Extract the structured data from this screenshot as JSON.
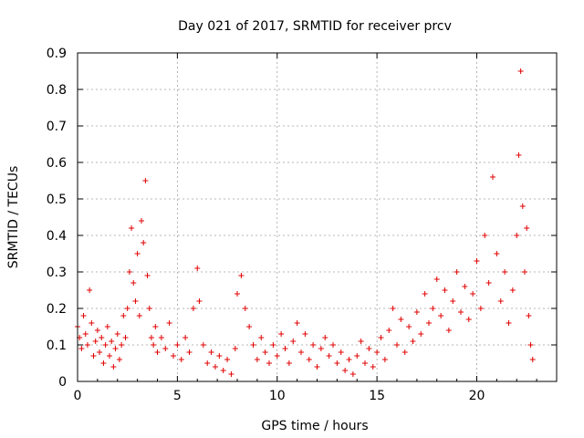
{
  "chart_data": {
    "type": "scatter",
    "title": "Day 021 of 2017, SRMTID for receiver prcv",
    "xlabel": "GPS time / hours",
    "ylabel": "SRMTID / TECUs",
    "xlim": [
      0,
      24
    ],
    "ylim": [
      0,
      0.9
    ],
    "xticks": [
      0,
      5,
      10,
      15,
      20
    ],
    "yticks": [
      0,
      0.1,
      0.2,
      0.3,
      0.4,
      0.5,
      0.6,
      0.7,
      0.8,
      0.9
    ],
    "xtick_labels": [
      "0",
      "5",
      "10",
      "15",
      "20"
    ],
    "ytick_labels": [
      "0",
      "0.1",
      "0.2",
      "0.3",
      "0.4",
      "0.5",
      "0.6",
      "0.7",
      "0.8",
      "0.9"
    ],
    "grid": true,
    "marker": "+",
    "color": "#e00000",
    "series": [
      {
        "name": "SRMTID",
        "points": [
          [
            0.0,
            0.15
          ],
          [
            0.1,
            0.12
          ],
          [
            0.2,
            0.09
          ],
          [
            0.3,
            0.18
          ],
          [
            0.4,
            0.13
          ],
          [
            0.5,
            0.1
          ],
          [
            0.6,
            0.25
          ],
          [
            0.7,
            0.16
          ],
          [
            0.8,
            0.07
          ],
          [
            0.9,
            0.11
          ],
          [
            1.0,
            0.14
          ],
          [
            1.1,
            0.08
          ],
          [
            1.2,
            0.12
          ],
          [
            1.3,
            0.05
          ],
          [
            1.4,
            0.1
          ],
          [
            1.5,
            0.15
          ],
          [
            1.6,
            0.07
          ],
          [
            1.7,
            0.11
          ],
          [
            1.8,
            0.04
          ],
          [
            1.9,
            0.09
          ],
          [
            2.0,
            0.13
          ],
          [
            2.1,
            0.06
          ],
          [
            2.2,
            0.1
          ],
          [
            2.3,
            0.18
          ],
          [
            2.4,
            0.12
          ],
          [
            2.5,
            0.2
          ],
          [
            2.6,
            0.3
          ],
          [
            2.7,
            0.42
          ],
          [
            2.8,
            0.27
          ],
          [
            2.9,
            0.22
          ],
          [
            3.0,
            0.35
          ],
          [
            3.1,
            0.18
          ],
          [
            3.2,
            0.44
          ],
          [
            3.3,
            0.38
          ],
          [
            3.4,
            0.55
          ],
          [
            3.5,
            0.29
          ],
          [
            3.6,
            0.2
          ],
          [
            3.7,
            0.12
          ],
          [
            3.8,
            0.1
          ],
          [
            3.9,
            0.15
          ],
          [
            4.0,
            0.08
          ],
          [
            4.2,
            0.12
          ],
          [
            4.4,
            0.09
          ],
          [
            4.6,
            0.16
          ],
          [
            4.8,
            0.07
          ],
          [
            5.0,
            0.1
          ],
          [
            5.2,
            0.06
          ],
          [
            5.4,
            0.12
          ],
          [
            5.6,
            0.08
          ],
          [
            5.8,
            0.2
          ],
          [
            6.0,
            0.31
          ],
          [
            6.1,
            0.22
          ],
          [
            6.3,
            0.1
          ],
          [
            6.5,
            0.05
          ],
          [
            6.7,
            0.08
          ],
          [
            6.9,
            0.04
          ],
          [
            7.1,
            0.07
          ],
          [
            7.3,
            0.03
          ],
          [
            7.5,
            0.06
          ],
          [
            7.7,
            0.02
          ],
          [
            7.9,
            0.09
          ],
          [
            8.0,
            0.24
          ],
          [
            8.2,
            0.29
          ],
          [
            8.4,
            0.2
          ],
          [
            8.6,
            0.15
          ],
          [
            8.8,
            0.1
          ],
          [
            9.0,
            0.06
          ],
          [
            9.2,
            0.12
          ],
          [
            9.4,
            0.08
          ],
          [
            9.6,
            0.05
          ],
          [
            9.8,
            0.1
          ],
          [
            10.0,
            0.07
          ],
          [
            10.2,
            0.13
          ],
          [
            10.4,
            0.09
          ],
          [
            10.6,
            0.05
          ],
          [
            10.8,
            0.11
          ],
          [
            11.0,
            0.16
          ],
          [
            11.2,
            0.08
          ],
          [
            11.4,
            0.13
          ],
          [
            11.6,
            0.06
          ],
          [
            11.8,
            0.1
          ],
          [
            12.0,
            0.04
          ],
          [
            12.2,
            0.09
          ],
          [
            12.4,
            0.12
          ],
          [
            12.6,
            0.07
          ],
          [
            12.8,
            0.1
          ],
          [
            13.0,
            0.05
          ],
          [
            13.2,
            0.08
          ],
          [
            13.4,
            0.03
          ],
          [
            13.6,
            0.06
          ],
          [
            13.8,
            0.02
          ],
          [
            14.0,
            0.07
          ],
          [
            14.2,
            0.11
          ],
          [
            14.4,
            0.05
          ],
          [
            14.6,
            0.09
          ],
          [
            14.8,
            0.04
          ],
          [
            15.0,
            0.08
          ],
          [
            15.2,
            0.12
          ],
          [
            15.4,
            0.06
          ],
          [
            15.6,
            0.14
          ],
          [
            15.8,
            0.2
          ],
          [
            16.0,
            0.1
          ],
          [
            16.2,
            0.17
          ],
          [
            16.4,
            0.08
          ],
          [
            16.6,
            0.15
          ],
          [
            16.8,
            0.11
          ],
          [
            17.0,
            0.19
          ],
          [
            17.2,
            0.13
          ],
          [
            17.4,
            0.24
          ],
          [
            17.6,
            0.16
          ],
          [
            17.8,
            0.2
          ],
          [
            18.0,
            0.28
          ],
          [
            18.2,
            0.18
          ],
          [
            18.4,
            0.25
          ],
          [
            18.6,
            0.14
          ],
          [
            18.8,
            0.22
          ],
          [
            19.0,
            0.3
          ],
          [
            19.2,
            0.19
          ],
          [
            19.4,
            0.26
          ],
          [
            19.6,
            0.17
          ],
          [
            19.8,
            0.24
          ],
          [
            20.0,
            0.33
          ],
          [
            20.2,
            0.2
          ],
          [
            20.4,
            0.4
          ],
          [
            20.6,
            0.27
          ],
          [
            20.8,
            0.56
          ],
          [
            21.0,
            0.35
          ],
          [
            21.2,
            0.22
          ],
          [
            21.4,
            0.3
          ],
          [
            21.6,
            0.16
          ],
          [
            21.8,
            0.25
          ],
          [
            22.0,
            0.4
          ],
          [
            22.1,
            0.62
          ],
          [
            22.2,
            0.85
          ],
          [
            22.3,
            0.48
          ],
          [
            22.4,
            0.3
          ],
          [
            22.5,
            0.42
          ],
          [
            22.6,
            0.18
          ],
          [
            22.7,
            0.1
          ],
          [
            22.8,
            0.06
          ]
        ]
      }
    ]
  }
}
